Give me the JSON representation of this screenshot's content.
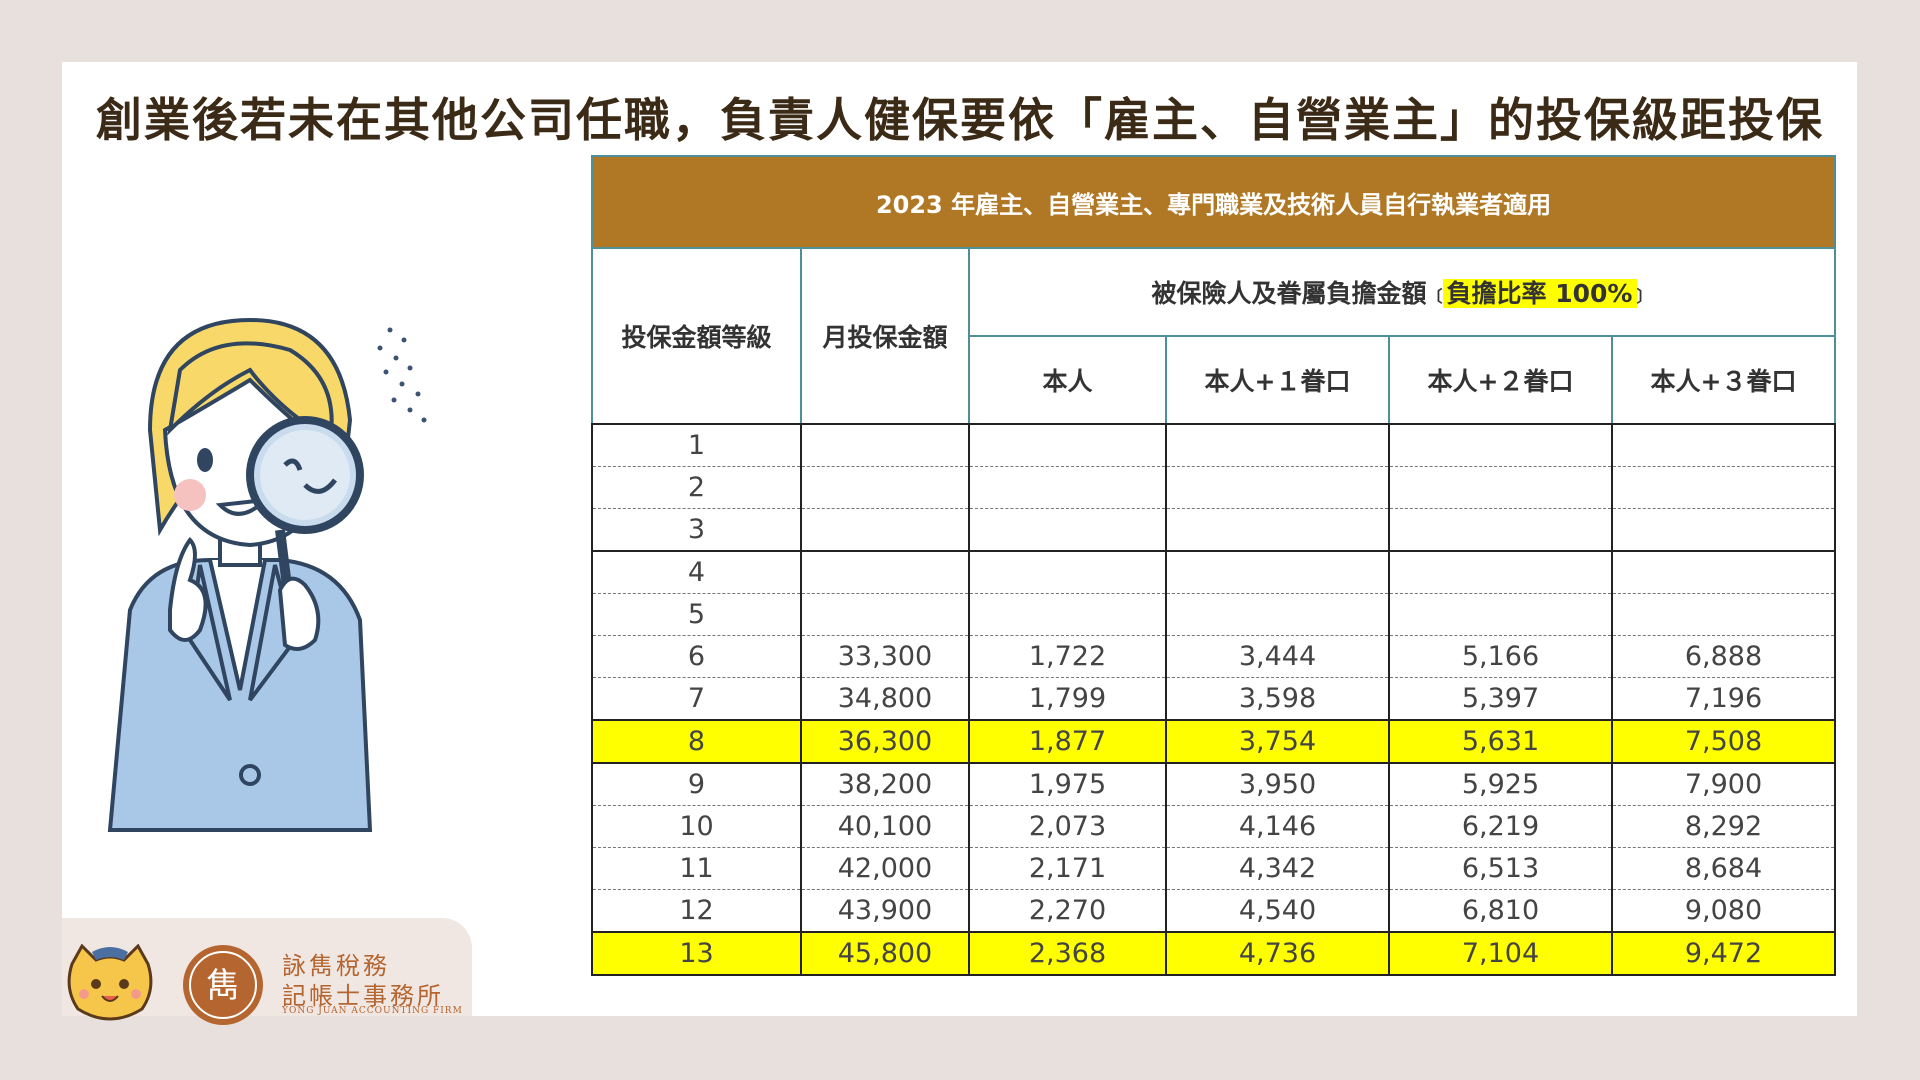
{
  "headline": "創業後若未在其他公司任職，負責人健保要依「雇主、自營業主」的投保級距投保",
  "table": {
    "caption": "2023 年雇主、自營業主、專門職業及技術人員自行執業者適用",
    "col_grade": "投保金額等級",
    "col_salary": "月投保金額",
    "group_prefix": "被保險人及眷屬負擔金額",
    "group_open": "〔",
    "group_highlight": "負擔比率 100%",
    "group_close": "〕",
    "sub_self": "本人",
    "sub_plus1": "本人+１眷口",
    "sub_plus2": "本人+２眷口",
    "sub_plus3": "本人+３眷口",
    "rows": [
      {
        "grade": "1",
        "salary": "",
        "self": "",
        "p1": "",
        "p2": "",
        "p3": ""
      },
      {
        "grade": "2",
        "salary": "",
        "self": "",
        "p1": "",
        "p2": "",
        "p3": ""
      },
      {
        "grade": "3",
        "salary": "",
        "self": "",
        "p1": "",
        "p2": "",
        "p3": ""
      },
      {
        "grade": "4",
        "salary": "",
        "self": "",
        "p1": "",
        "p2": "",
        "p3": ""
      },
      {
        "grade": "5",
        "salary": "",
        "self": "",
        "p1": "",
        "p2": "",
        "p3": ""
      },
      {
        "grade": "6",
        "salary": "33,300",
        "self": "1,722",
        "p1": "3,444",
        "p2": "5,166",
        "p3": "6,888"
      },
      {
        "grade": "7",
        "salary": "34,800",
        "self": "1,799",
        "p1": "3,598",
        "p2": "5,397",
        "p3": "7,196"
      },
      {
        "grade": "8",
        "salary": "36,300",
        "self": "1,877",
        "p1": "3,754",
        "p2": "5,631",
        "p3": "7,508"
      },
      {
        "grade": "9",
        "salary": "38,200",
        "self": "1,975",
        "p1": "3,950",
        "p2": "5,925",
        "p3": "7,900"
      },
      {
        "grade": "10",
        "salary": "40,100",
        "self": "2,073",
        "p1": "4,146",
        "p2": "6,219",
        "p3": "8,292"
      },
      {
        "grade": "11",
        "salary": "42,000",
        "self": "2,171",
        "p1": "4,342",
        "p2": "6,513",
        "p3": "8,684"
      },
      {
        "grade": "12",
        "salary": "43,900",
        "self": "2,270",
        "p1": "4,540",
        "p2": "6,810",
        "p3": "9,080"
      },
      {
        "grade": "13",
        "salary": "45,800",
        "self": "2,368",
        "p1": "4,736",
        "p2": "7,104",
        "p3": "9,472"
      }
    ]
  },
  "firm": {
    "line1": "詠雋稅務",
    "line2": "記帳士事務所",
    "english": "YONG JUAN ACCOUNTING FIRM",
    "seal_glyph": "雋"
  },
  "colors": {
    "caption_bg": "#b07824",
    "highlight": "#ffff00",
    "border": "#4f8f97",
    "firm": "#b5652f"
  },
  "icons": [
    "woman-magnifier-illustration",
    "cat-mascot-icon",
    "firm-seal-logo"
  ]
}
